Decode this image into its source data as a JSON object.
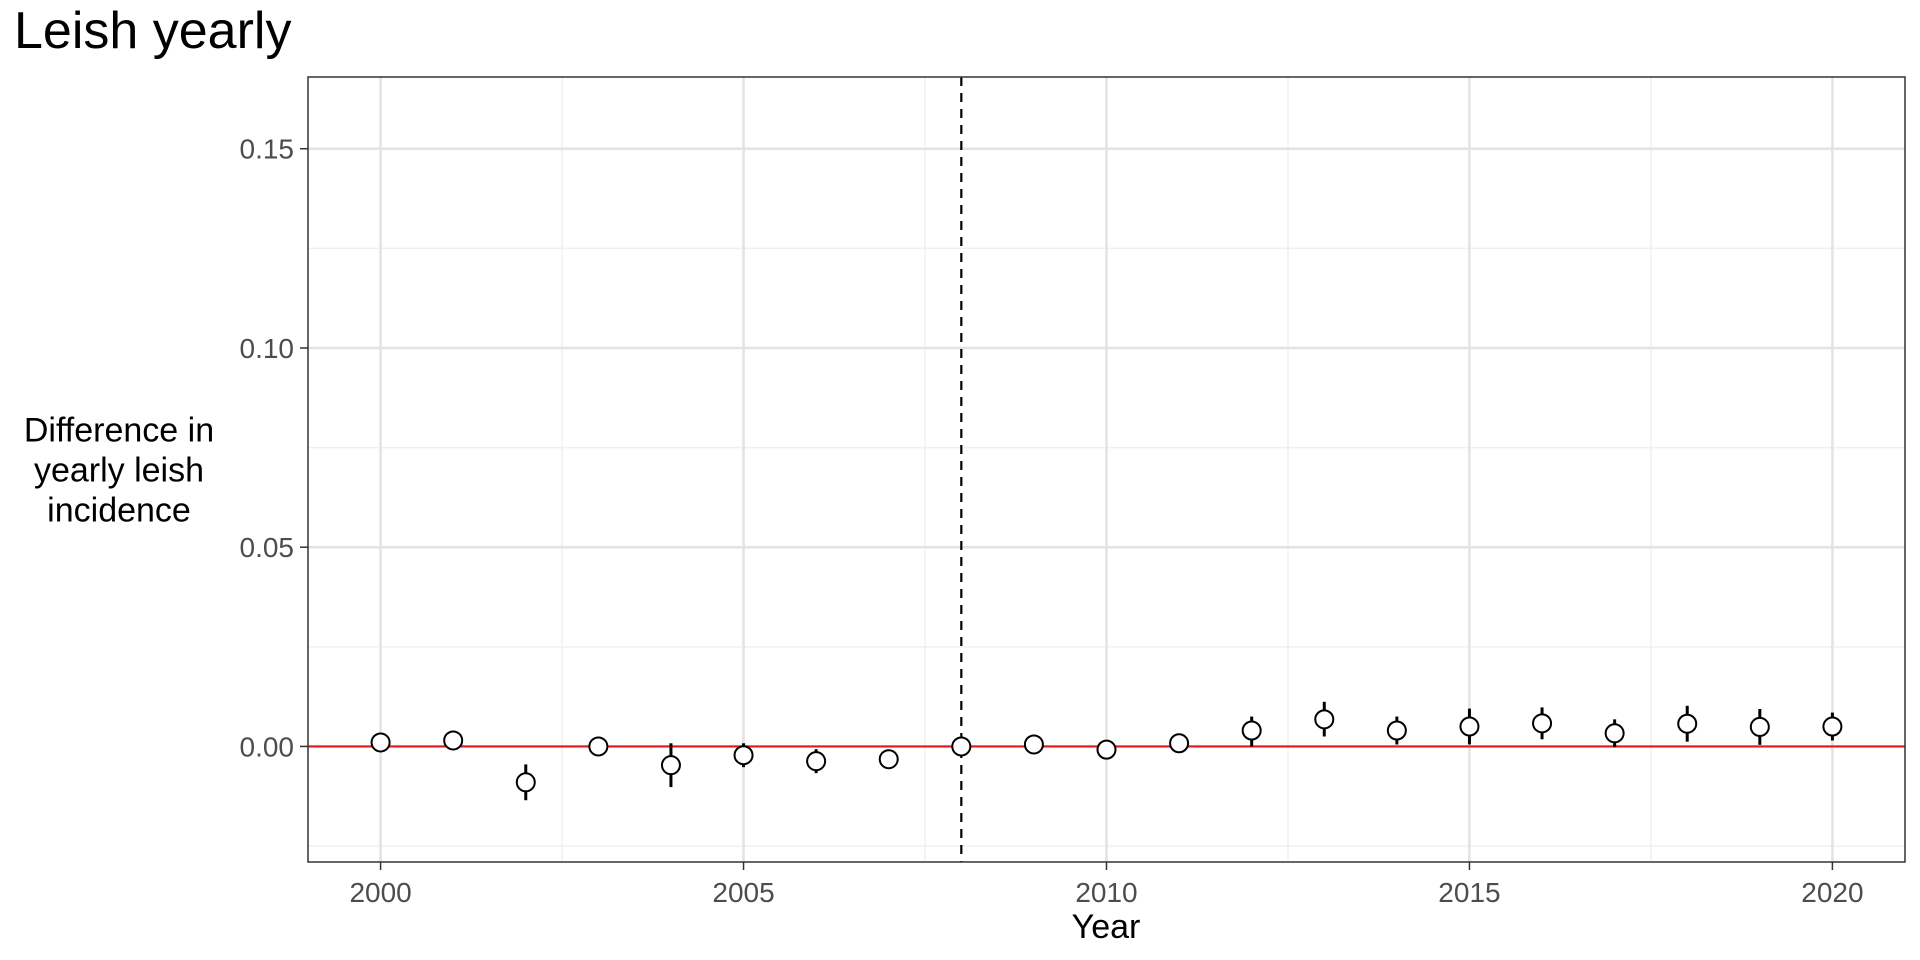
{
  "chart_data": {
    "type": "scatter",
    "title": "Leish yearly",
    "xlabel": "Year",
    "ylabel_lines": [
      "Difference in",
      "yearly leish",
      "incidence"
    ],
    "xlim": [
      1999,
      2021
    ],
    "ylim": [
      -0.029,
      0.168
    ],
    "x_ticks": [
      2000,
      2005,
      2010,
      2015,
      2020
    ],
    "x_tick_labels": [
      "2000",
      "2005",
      "2010",
      "2015",
      "2020"
    ],
    "y_ticks": [
      0.0,
      0.05,
      0.1,
      0.15
    ],
    "y_tick_labels": [
      "0.00",
      "0.05",
      "0.10",
      "0.15"
    ],
    "reference_line": {
      "y": 0,
      "color": "#e41a1c"
    },
    "event_line": {
      "x": 2008,
      "style": "dashed",
      "color": "#000000"
    },
    "grid": true,
    "points": [
      {
        "x": 2000,
        "y": 0.001,
        "lower": 0.0,
        "upper": 0.002
      },
      {
        "x": 2001,
        "y": 0.0015,
        "lower": 0.0005,
        "upper": 0.0025
      },
      {
        "x": 2002,
        "y": -0.009,
        "lower": -0.0135,
        "upper": -0.0045
      },
      {
        "x": 2003,
        "y": 0.0,
        "lower": -0.001,
        "upper": 0.001
      },
      {
        "x": 2004,
        "y": -0.0047,
        "lower": -0.0102,
        "upper": 0.0008
      },
      {
        "x": 2005,
        "y": -0.0022,
        "lower": -0.0052,
        "upper": 0.0008
      },
      {
        "x": 2006,
        "y": -0.0037,
        "lower": -0.0067,
        "upper": -0.0007
      },
      {
        "x": 2007,
        "y": -0.0032,
        "lower": -0.0042,
        "upper": -0.0022
      },
      {
        "x": 2008,
        "y": 0.0,
        "lower": 0.0,
        "upper": 0.0
      },
      {
        "x": 2009,
        "y": 0.0005,
        "lower": -0.0005,
        "upper": 0.0015
      },
      {
        "x": 2010,
        "y": -0.0008,
        "lower": -0.0018,
        "upper": 0.0002
      },
      {
        "x": 2011,
        "y": 0.0008,
        "lower": -0.0002,
        "upper": 0.0018
      },
      {
        "x": 2012,
        "y": 0.004,
        "lower": 0.0,
        "upper": 0.0075
      },
      {
        "x": 2013,
        "y": 0.0068,
        "lower": 0.0025,
        "upper": 0.0112
      },
      {
        "x": 2014,
        "y": 0.004,
        "lower": 0.0005,
        "upper": 0.0075
      },
      {
        "x": 2015,
        "y": 0.005,
        "lower": 0.0005,
        "upper": 0.0095
      },
      {
        "x": 2016,
        "y": 0.0058,
        "lower": 0.0018,
        "upper": 0.0098
      },
      {
        "x": 2017,
        "y": 0.0033,
        "lower": -0.0002,
        "upper": 0.0068
      },
      {
        "x": 2018,
        "y": 0.0057,
        "lower": 0.0012,
        "upper": 0.0102
      },
      {
        "x": 2019,
        "y": 0.0049,
        "lower": 0.0004,
        "upper": 0.0094
      },
      {
        "x": 2020,
        "y": 0.005,
        "lower": 0.0015,
        "upper": 0.0085
      }
    ]
  }
}
